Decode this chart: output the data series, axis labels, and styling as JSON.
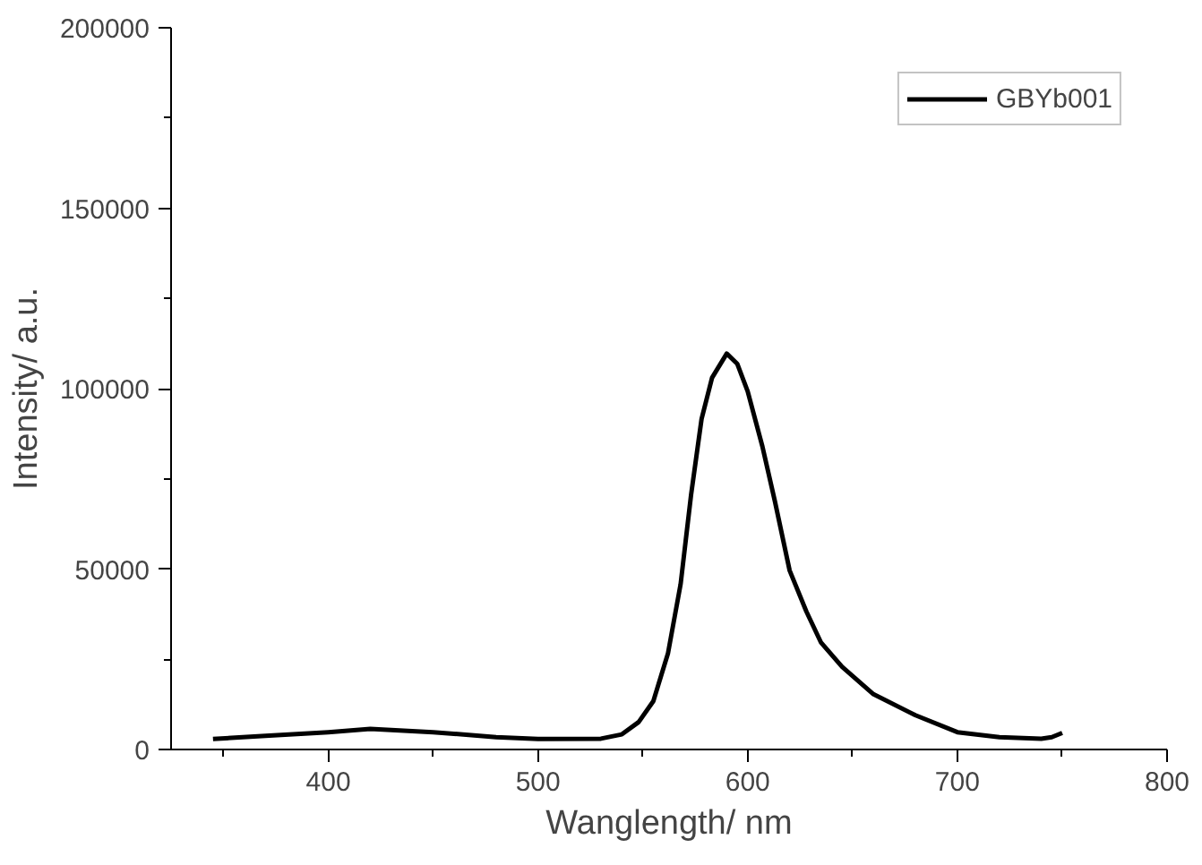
{
  "chart_data": {
    "type": "line",
    "xlabel": "Wanglength/ nm",
    "ylabel": "Intensity/ a.u.",
    "xlim": [
      325,
      800
    ],
    "ylim": [
      0,
      200000
    ],
    "xticks": [
      {
        "value": 350,
        "label": null
      },
      400,
      {
        "value": 450,
        "label": null
      },
      500,
      {
        "value": 550,
        "label": null
      },
      600,
      {
        "value": 650,
        "label": null
      },
      700,
      {
        "value": 750,
        "label": null
      },
      800
    ],
    "yticks": [
      0,
      {
        "value": 25000,
        "label": null
      },
      50000,
      {
        "value": 75000,
        "label": null
      },
      100000,
      {
        "value": 125000,
        "label": null
      },
      150000,
      {
        "value": 175000,
        "label": null
      },
      200000
    ],
    "grid": false,
    "legend": "top right",
    "line_style": "solid",
    "series": [
      {
        "name": "GBYb001",
        "color": "#000000",
        "x": [
          345,
          370,
          400,
          420,
          450,
          480,
          500,
          530,
          540,
          548,
          555,
          562,
          568,
          573,
          578,
          583,
          590,
          595,
          600,
          607,
          613,
          620,
          628,
          635,
          645,
          660,
          680,
          700,
          720,
          740,
          745,
          750
        ],
        "values": [
          2900,
          3800,
          4800,
          5700,
          4800,
          3400,
          2900,
          3000,
          4200,
          7600,
          13400,
          26700,
          45800,
          70600,
          91600,
          103000,
          109700,
          106900,
          99200,
          84000,
          68700,
          49600,
          38200,
          29600,
          22900,
          15300,
          9500,
          4800,
          3400,
          3000,
          3400,
          4600
        ]
      }
    ]
  }
}
